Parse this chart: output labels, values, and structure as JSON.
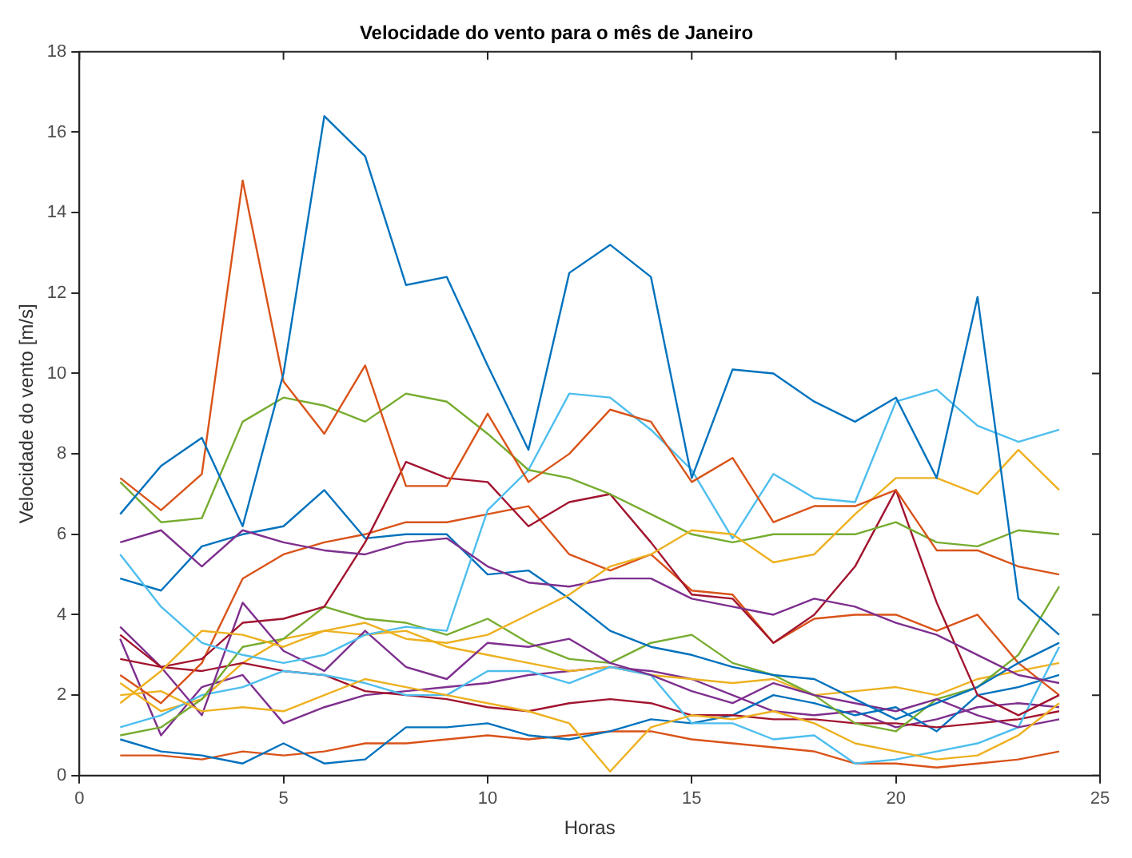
{
  "chart_data": {
    "type": "line",
    "title": "Velocidade do vento para o mês de Janeiro",
    "xlabel": "Horas",
    "ylabel": "Velocidade do vento [m/s]",
    "x": [
      1,
      2,
      3,
      4,
      5,
      6,
      7,
      8,
      9,
      10,
      11,
      12,
      13,
      14,
      15,
      16,
      17,
      18,
      19,
      20,
      21,
      22,
      23,
      24
    ],
    "xlim": [
      0,
      25
    ],
    "xticks": [
      0,
      5,
      10,
      15,
      20,
      25
    ],
    "ylim": [
      0,
      18
    ],
    "yticks": [
      0,
      2,
      4,
      6,
      8,
      10,
      12,
      14,
      16,
      18
    ],
    "grid": false,
    "legend": false,
    "marker": "none",
    "line_style": "solid",
    "series": [
      {
        "color": "#0072bd",
        "values": [
          6.5,
          7.7,
          8.4,
          6.2,
          10,
          16.4,
          15.4,
          12.2,
          12.4,
          10.2,
          8.1,
          12.5,
          13.2,
          12.4,
          7.4,
          10.1,
          10.0,
          9.3,
          8.8,
          9.4,
          7.4,
          11.9,
          4.4,
          3.5
        ]
      },
      {
        "color": "#d95319",
        "values": [
          7.4,
          6.6,
          7.5,
          14.8,
          9.8,
          8.5,
          10.2,
          7.2,
          7.2,
          9.0,
          7.3,
          8.0,
          9.1,
          8.8,
          7.3,
          7.9,
          6.3,
          6.7,
          6.7,
          7.1,
          5.6,
          5.6,
          5.2,
          5.0
        ]
      },
      {
        "color": "#edb120",
        "values": [
          1.8,
          2.6,
          3.6,
          3.5,
          3.2,
          3.6,
          3.8,
          3.4,
          3.3,
          3.5,
          4.0,
          4.5,
          5.2,
          5.5,
          6.1,
          6.0,
          5.3,
          5.5,
          6.5,
          7.4,
          7.4,
          7.0,
          8.1,
          7.1
        ]
      },
      {
        "color": "#7e2f8e",
        "values": [
          5.8,
          6.1,
          5.2,
          6.1,
          5.8,
          5.6,
          5.5,
          5.8,
          5.9,
          5.2,
          4.8,
          4.7,
          4.9,
          4.9,
          4.4,
          4.2,
          4.0,
          4.4,
          4.2,
          3.8,
          3.5,
          3.0,
          2.5,
          2.3
        ]
      },
      {
        "color": "#77ac30",
        "values": [
          7.3,
          6.3,
          6.4,
          8.8,
          9.4,
          9.2,
          8.8,
          9.5,
          9.3,
          8.5,
          7.6,
          7.4,
          7.0,
          6.5,
          6.0,
          5.8,
          6.0,
          6.0,
          6.0,
          6.3,
          5.8,
          5.7,
          6.1,
          6.0
        ]
      },
      {
        "color": "#4dbeee",
        "values": [
          5.5,
          4.2,
          3.3,
          3.0,
          2.8,
          3.0,
          3.5,
          3.7,
          3.6,
          6.6,
          7.6,
          9.5,
          9.4,
          8.6,
          7.6,
          5.9,
          7.5,
          6.9,
          6.8,
          9.3,
          9.6,
          8.7,
          8.3,
          8.6
        ]
      },
      {
        "color": "#a2142f",
        "values": [
          3.5,
          2.7,
          2.9,
          3.8,
          3.9,
          4.2,
          5.8,
          7.8,
          7.4,
          7.3,
          6.2,
          6.8,
          7.0,
          5.8,
          4.5,
          4.4,
          3.3,
          4.0,
          5.2,
          7.1,
          4.3,
          2.0,
          1.5,
          2.0
        ]
      },
      {
        "color": "#0072bd",
        "values": [
          4.9,
          4.6,
          5.7,
          6.0,
          6.2,
          7.1,
          5.9,
          6.0,
          6.0,
          5.0,
          5.1,
          4.4,
          3.6,
          3.2,
          3.0,
          2.7,
          2.5,
          2.4,
          1.9,
          1.4,
          1.8,
          2.2,
          2.8,
          3.3
        ]
      },
      {
        "color": "#d95319",
        "values": [
          2.5,
          1.8,
          2.8,
          4.9,
          5.5,
          5.8,
          6.0,
          6.3,
          6.3,
          6.5,
          6.7,
          5.5,
          5.1,
          5.5,
          4.6,
          4.5,
          3.3,
          3.9,
          4.0,
          4.0,
          3.6,
          4.0,
          2.8,
          2.0
        ]
      },
      {
        "color": "#edb120",
        "values": [
          2.0,
          2.1,
          1.6,
          1.7,
          1.6,
          2.0,
          2.4,
          2.2,
          2.0,
          1.8,
          1.6,
          1.3,
          0.1,
          1.2,
          1.5,
          1.4,
          1.6,
          1.3,
          0.8,
          0.6,
          0.4,
          0.5,
          1.0,
          1.8
        ]
      },
      {
        "color": "#7e2f8e",
        "values": [
          3.7,
          2.7,
          1.5,
          4.3,
          3.1,
          2.6,
          3.6,
          2.7,
          2.4,
          3.3,
          3.2,
          3.4,
          2.8,
          2.5,
          2.1,
          1.8,
          2.3,
          2.0,
          1.8,
          1.6,
          1.9,
          1.5,
          1.2,
          1.4
        ]
      },
      {
        "color": "#77ac30",
        "values": [
          1.0,
          1.2,
          1.9,
          3.2,
          3.4,
          4.2,
          3.9,
          3.8,
          3.5,
          3.9,
          3.3,
          2.9,
          2.8,
          3.3,
          3.5,
          2.8,
          2.5,
          2.0,
          1.3,
          1.1,
          1.9,
          2.2,
          3.0,
          4.7
        ]
      },
      {
        "color": "#4dbeee",
        "values": [
          1.2,
          1.5,
          2.0,
          2.2,
          2.6,
          2.5,
          2.3,
          2.0,
          2.0,
          2.6,
          2.6,
          2.3,
          2.7,
          2.5,
          1.3,
          1.3,
          0.9,
          1.0,
          0.3,
          0.4,
          0.6,
          0.8,
          1.2,
          3.2
        ]
      },
      {
        "color": "#a2142f",
        "values": [
          2.9,
          2.7,
          2.6,
          2.8,
          2.6,
          2.5,
          2.1,
          2.0,
          1.9,
          1.7,
          1.6,
          1.8,
          1.9,
          1.8,
          1.5,
          1.5,
          1.4,
          1.4,
          1.3,
          1.3,
          1.2,
          1.3,
          1.4,
          1.6
        ]
      },
      {
        "color": "#0072bd",
        "values": [
          0.9,
          0.6,
          0.5,
          0.3,
          0.8,
          0.3,
          0.4,
          1.2,
          1.2,
          1.3,
          1.0,
          0.9,
          1.1,
          1.4,
          1.3,
          1.5,
          2.0,
          1.8,
          1.5,
          1.7,
          1.1,
          2.0,
          2.2,
          2.5
        ]
      },
      {
        "color": "#d95319",
        "values": [
          0.5,
          0.5,
          0.4,
          0.6,
          0.5,
          0.6,
          0.8,
          0.8,
          0.9,
          1.0,
          0.9,
          1.0,
          1.1,
          1.1,
          0.9,
          0.8,
          0.7,
          0.6,
          0.3,
          0.3,
          0.2,
          0.3,
          0.4,
          0.6
        ]
      },
      {
        "color": "#edb120",
        "values": [
          2.3,
          1.6,
          1.9,
          2.8,
          3.4,
          3.6,
          3.5,
          3.6,
          3.2,
          3.0,
          2.8,
          2.6,
          2.7,
          2.5,
          2.4,
          2.3,
          2.4,
          2.0,
          2.1,
          2.2,
          2.0,
          2.4,
          2.6,
          2.8
        ]
      },
      {
        "color": "#7e2f8e",
        "values": [
          3.4,
          1.0,
          2.2,
          2.5,
          1.3,
          1.7,
          2.0,
          2.1,
          2.2,
          2.3,
          2.5,
          2.6,
          2.7,
          2.6,
          2.4,
          2.0,
          1.6,
          1.5,
          1.6,
          1.2,
          1.4,
          1.7,
          1.8,
          1.7
        ]
      }
    ]
  }
}
